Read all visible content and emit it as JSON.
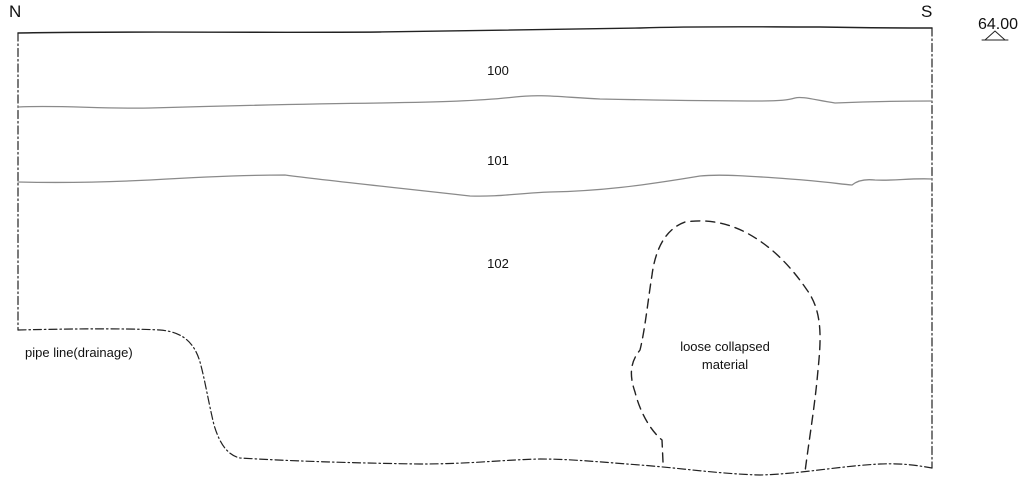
{
  "orientation": {
    "north": "N",
    "south": "S"
  },
  "datum": {
    "level": "64.00"
  },
  "layers": [
    {
      "id": "layer-100",
      "label": "100"
    },
    {
      "id": "layer-101",
      "label": "101"
    },
    {
      "id": "layer-102",
      "label": "102"
    }
  ],
  "features": {
    "pipe": {
      "label": "pipe line(drainage)"
    },
    "collapse": {
      "line1": "loose collapsed",
      "line2": "material"
    }
  },
  "colors": {
    "ink": "#222222",
    "layer_boundary": "#8a8a8a"
  }
}
